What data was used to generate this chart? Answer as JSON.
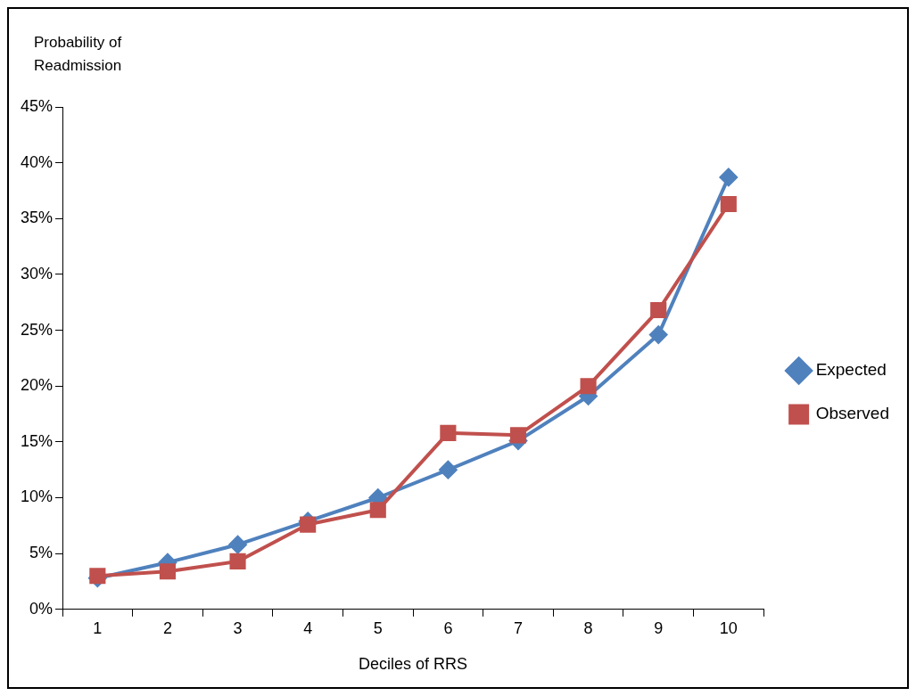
{
  "chart_data": {
    "type": "line",
    "ylabel": "Probability of Readmission",
    "xlabel": "Deciles of RRS",
    "categories": [
      "1",
      "2",
      "3",
      "4",
      "5",
      "6",
      "7",
      "8",
      "9",
      "10"
    ],
    "series": [
      {
        "name": "Expected",
        "color": "#4f81bd",
        "marker": "diamond",
        "values": [
          2.8,
          4.2,
          5.8,
          7.9,
          10.0,
          12.5,
          15.1,
          19.1,
          24.6,
          38.7
        ]
      },
      {
        "name": "Observed",
        "color": "#c0504d",
        "marker": "square",
        "values": [
          3.0,
          3.4,
          4.3,
          7.6,
          8.9,
          15.8,
          15.6,
          20.0,
          26.8,
          36.3
        ]
      }
    ],
    "ylim": [
      0,
      45
    ],
    "yticks": [
      {
        "value": 0,
        "label": "0%"
      },
      {
        "value": 5,
        "label": "5%"
      },
      {
        "value": 10,
        "label": "10%"
      },
      {
        "value": 15,
        "label": "15%"
      },
      {
        "value": 20,
        "label": "20%"
      },
      {
        "value": 25,
        "label": "25%"
      },
      {
        "value": 30,
        "label": "30%"
      },
      {
        "value": 35,
        "label": "35%"
      },
      {
        "value": 40,
        "label": "40%"
      },
      {
        "value": 45,
        "label": "45%"
      }
    ],
    "grid": false,
    "legend": "right",
    "line_style": "solid"
  }
}
